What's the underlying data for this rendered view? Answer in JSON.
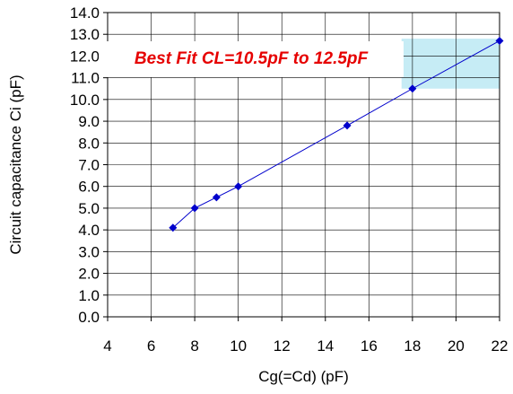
{
  "chart_data": {
    "type": "line",
    "title": "",
    "xlabel": "Cg(=Cd) (pF)",
    "ylabel": "Circuit capacitance Ci  (pF)",
    "xlim": [
      4,
      22
    ],
    "ylim": [
      0,
      14
    ],
    "x_ticks": [
      "4",
      "6",
      "8",
      "10",
      "12",
      "14",
      "16",
      "18",
      "20",
      "22"
    ],
    "y_ticks": [
      "0.0",
      "1.0",
      "2.0",
      "3.0",
      "4.0",
      "5.0",
      "6.0",
      "7.0",
      "8.0",
      "9.0",
      "10.0",
      "11.0",
      "12.0",
      "13.0",
      "14.0"
    ],
    "grid": true,
    "series": [
      {
        "color": "#0000cc",
        "points": [
          {
            "x": 7,
            "y": 4.1
          },
          {
            "x": 8,
            "y": 5.0
          },
          {
            "x": 9,
            "y": 5.5
          },
          {
            "x": 10,
            "y": 6.0
          },
          {
            "x": 15,
            "y": 8.8
          },
          {
            "x": 18,
            "y": 10.5
          },
          {
            "x": 22,
            "y": 12.7
          }
        ]
      }
    ],
    "highlight_region": {
      "x": [
        17.5,
        22
      ],
      "y": [
        10.5,
        12.8
      ],
      "color": "#c6ecf5"
    },
    "annotation": {
      "text": "Best Fit CL=10.5pF to 12.5pF",
      "color": "#e60000"
    }
  }
}
